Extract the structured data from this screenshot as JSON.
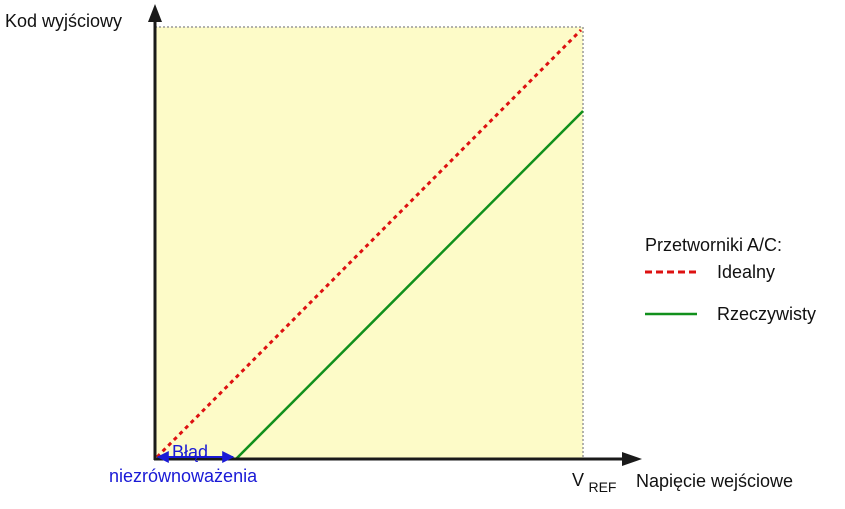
{
  "axes": {
    "y_label": "Kod wyjściowy",
    "x_label": "Napięcie wejściowe",
    "vref_main": "V",
    "vref_sub": "REF"
  },
  "offset_error": {
    "line1": "Błąd",
    "line2": "niezrównoważenia"
  },
  "legend": {
    "title": "Przetworniki A/C:",
    "items": [
      {
        "label": "Idealny",
        "style": "dashed",
        "color": "#dd1111"
      },
      {
        "label": "Rzeczywisty",
        "style": "solid",
        "color": "#11901c"
      }
    ]
  },
  "colors": {
    "plot_fill": "#fdfbc8",
    "axis": "#1a1a1a",
    "annotation": "#1a1ad6"
  }
}
